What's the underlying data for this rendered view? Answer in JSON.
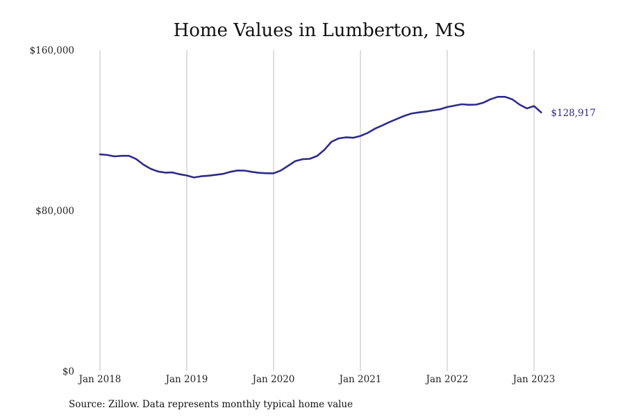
{
  "chart_data": {
    "type": "line",
    "title": "Home Values in Lumberton, MS",
    "source": "Source: Zillow. Data represents monthly typical home value",
    "ylim": [
      0,
      160000
    ],
    "y_ticks": [
      {
        "value": 0,
        "label": "$0"
      },
      {
        "value": 80000,
        "label": "$80,000"
      },
      {
        "value": 160000,
        "label": "$160,000"
      }
    ],
    "x_ticks": [
      {
        "value": "2018-01",
        "label": "Jan 2018"
      },
      {
        "value": "2019-01",
        "label": "Jan 2019"
      },
      {
        "value": "2020-01",
        "label": "Jan 2020"
      },
      {
        "value": "2021-01",
        "label": "Jan 2021"
      },
      {
        "value": "2022-01",
        "label": "Jan 2022"
      },
      {
        "value": "2023-01",
        "label": "Jan 2023"
      }
    ],
    "grid": {
      "vertical": true,
      "horizontal": false
    },
    "line_color": "#2e2a8a",
    "end_label": "$128,917",
    "series": [
      {
        "x": [
          "2018-01",
          "2018-02",
          "2018-03",
          "2018-04",
          "2018-05",
          "2018-06",
          "2018-07",
          "2018-08",
          "2018-09",
          "2018-10",
          "2018-11",
          "2018-12",
          "2019-01",
          "2019-02",
          "2019-03",
          "2019-04",
          "2019-05",
          "2019-06",
          "2019-07",
          "2019-08",
          "2019-09",
          "2019-10",
          "2019-11",
          "2019-12",
          "2020-01",
          "2020-02",
          "2020-03",
          "2020-04",
          "2020-05",
          "2020-06",
          "2020-07",
          "2020-08",
          "2020-09",
          "2020-10",
          "2020-11",
          "2020-12",
          "2021-01",
          "2021-02",
          "2021-03",
          "2021-04",
          "2021-05",
          "2021-06",
          "2021-07",
          "2021-08",
          "2021-09",
          "2021-10",
          "2021-11",
          "2021-12",
          "2022-01",
          "2022-02",
          "2022-03",
          "2022-04",
          "2022-05",
          "2022-06",
          "2022-07",
          "2022-08",
          "2022-09",
          "2022-10",
          "2022-11",
          "2022-12",
          "2023-01",
          "2023-02"
        ],
        "values": [
          108000,
          107700,
          107000,
          107300,
          107300,
          105700,
          102900,
          100800,
          99500,
          98900,
          99000,
          98100,
          97500,
          96500,
          97100,
          97400,
          97800,
          98300,
          99300,
          100000,
          99900,
          99300,
          98800,
          98600,
          98600,
          100000,
          102300,
          104700,
          105600,
          105800,
          107200,
          110200,
          114300,
          116000,
          116500,
          116300,
          117200,
          118700,
          120800,
          122400,
          124100,
          125600,
          127100,
          128300,
          128900,
          129300,
          129900,
          130500,
          131600,
          132300,
          133000,
          132700,
          132800,
          133800,
          135500,
          136700,
          136700,
          135400,
          132800,
          130900,
          132100,
          128917
        ]
      }
    ]
  }
}
